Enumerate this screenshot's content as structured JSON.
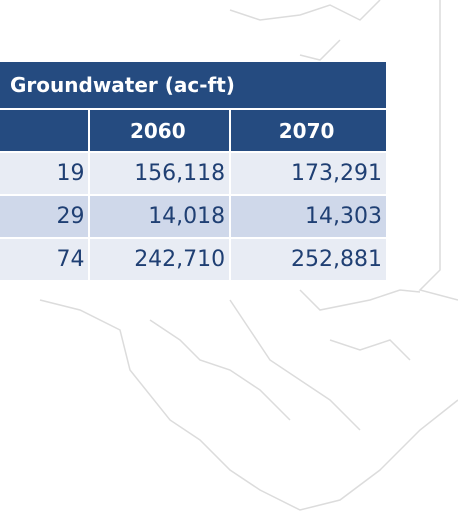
{
  "table": {
    "group_header": "Groundwater (ac-ft)",
    "columns": [
      "",
      "2060",
      "2070"
    ],
    "rows": [
      [
        "19",
        "156,118",
        "173,291"
      ],
      [
        "29",
        "14,018",
        "14,303"
      ],
      [
        "74",
        "242,710",
        "252,881"
      ]
    ]
  }
}
